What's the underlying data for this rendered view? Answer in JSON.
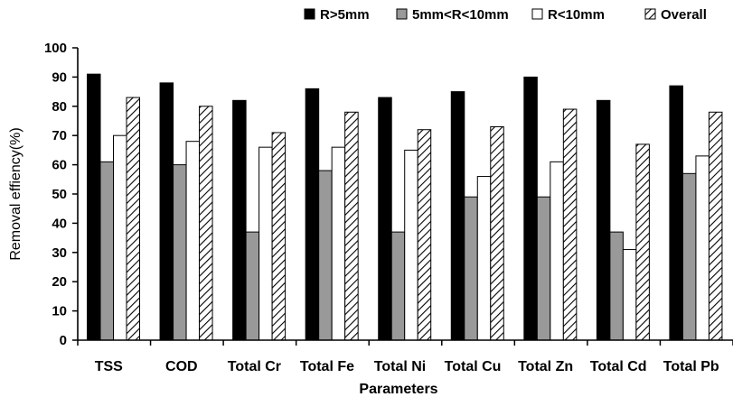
{
  "chart_data": {
    "type": "bar",
    "title": "",
    "xlabel": "Parameters",
    "ylabel": "Removal effiency(%)",
    "ylim": [
      0,
      100
    ],
    "yticks": [
      0,
      10,
      20,
      30,
      40,
      50,
      60,
      70,
      80,
      90,
      100
    ],
    "grid": false,
    "legend_position": "top",
    "categories": [
      "TSS",
      "COD",
      "Total Cr",
      "Total Fe",
      "Total Ni",
      "Total Cu",
      "Total Zn",
      "Total Cd",
      "Total Pb"
    ],
    "series": [
      {
        "name": "R>5mm",
        "color": "#000000",
        "pattern": "solid",
        "values": [
          91,
          88,
          82,
          86,
          83,
          85,
          90,
          82,
          87
        ]
      },
      {
        "name": "5mm<R<10mm",
        "color": "#999999",
        "pattern": "solid",
        "values": [
          61,
          60,
          37,
          58,
          37,
          49,
          49,
          37,
          57
        ]
      },
      {
        "name": "R<10mm",
        "color": "#ffffff",
        "pattern": "outline",
        "values": [
          70,
          68,
          66,
          66,
          65,
          56,
          61,
          31,
          63
        ]
      },
      {
        "name": "Overall",
        "color": "#ffffff",
        "pattern": "hatch",
        "values": [
          83,
          80,
          71,
          78,
          72,
          73,
          79,
          67,
          78
        ]
      }
    ]
  }
}
